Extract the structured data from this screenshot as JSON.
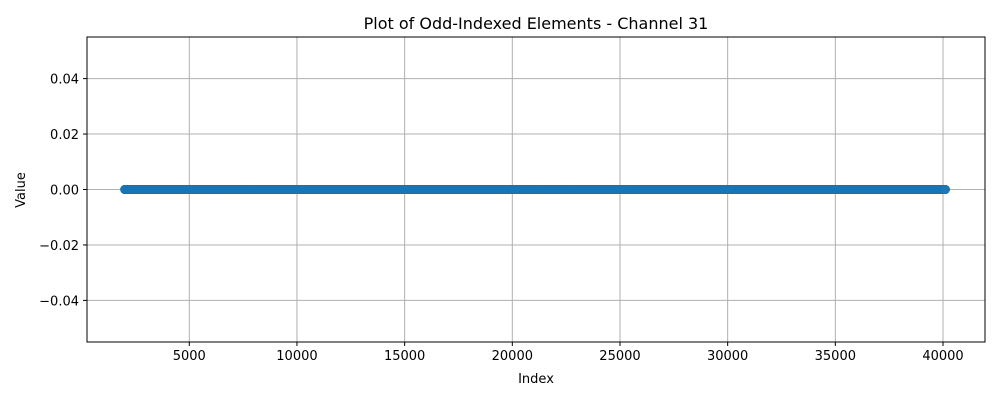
{
  "chart_data": {
    "type": "scatter",
    "title": "Plot of Odd-Indexed Elements - Channel 31",
    "xlabel": "Index",
    "ylabel": "Value",
    "xlim": [
      250,
      41950
    ],
    "ylim": [
      -0.055,
      0.055
    ],
    "xticks": [
      5000,
      10000,
      15000,
      20000,
      25000,
      30000,
      35000,
      40000
    ],
    "xtick_labels": [
      "5000",
      "10000",
      "15000",
      "20000",
      "25000",
      "30000",
      "35000",
      "40000"
    ],
    "yticks": [
      -0.04,
      -0.02,
      0.0,
      0.02,
      0.04
    ],
    "ytick_labels": [
      "−0.04",
      "−0.02",
      "0.00",
      "0.02",
      "0.04"
    ],
    "grid": true,
    "series": [
      {
        "color": "#1f77b4",
        "x_start": 2001,
        "x_end": 40111,
        "x_step": 2,
        "y_constant": 0.0
      }
    ]
  }
}
